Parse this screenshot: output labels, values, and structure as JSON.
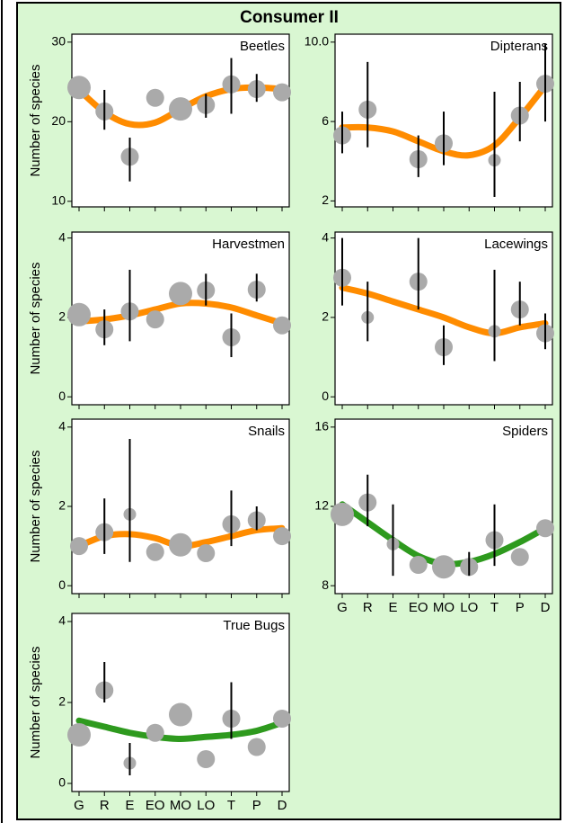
{
  "title": "Consumer II",
  "chart_data": [
    {
      "type": "scatter",
      "title": "Beetles",
      "ylabel": "Number of species",
      "values": [
        24.3,
        21.3,
        15.6,
        23,
        21.6,
        22.1,
        24.7,
        24.1,
        23.7
      ],
      "sizes": [
        3,
        2,
        2,
        2,
        3,
        2,
        2,
        2,
        2
      ],
      "lower": [
        null,
        19,
        12.5,
        null,
        null,
        20.5,
        21,
        22.5,
        null
      ],
      "upper": [
        null,
        24,
        18,
        null,
        null,
        23.5,
        28,
        26,
        null
      ],
      "fit": {
        "color": "#ff8c00",
        "values": [
          24,
          21.2,
          19.7,
          19.9,
          21.6,
          23.2,
          24.1,
          24.3,
          24.1
        ]
      },
      "ylim": [
        9.3,
        31
      ],
      "yticks": [
        10,
        20,
        30
      ]
    },
    {
      "type": "scatter",
      "title": "Dipterans",
      "values": [
        5.3,
        6.6,
        null,
        4.1,
        4.9,
        null,
        4.05,
        6.3,
        7.9
      ],
      "sizes": [
        2,
        2,
        null,
        2,
        2,
        null,
        1,
        2,
        2
      ],
      "lower": [
        4.4,
        4.7,
        null,
        3.2,
        3.8,
        null,
        2.2,
        5,
        6
      ],
      "upper": [
        6.5,
        9,
        null,
        5.3,
        6.5,
        null,
        7.5,
        8,
        9.9
      ],
      "fit": {
        "color": "#ff8c00",
        "values": [
          5.7,
          5.7,
          5.5,
          5.0,
          4.5,
          4.3,
          4.8,
          6.2,
          7.8
        ]
      },
      "ylim": [
        1.7,
        10.4
      ],
      "yticks": [
        2,
        6,
        {
          "value": 10,
          "label": "10.0"
        }
      ]
    },
    {
      "type": "scatter",
      "title": "Harvestmen",
      "ylabel": "Number of species",
      "values": [
        2.07,
        1.7,
        2.15,
        1.95,
        2.6,
        2.68,
        1.5,
        2.7,
        1.8
      ],
      "sizes": [
        3,
        2,
        2,
        2,
        3,
        2,
        2,
        2,
        2
      ],
      "lower": [
        null,
        1.3,
        1.4,
        null,
        null,
        2.3,
        1.0,
        2.4,
        null
      ],
      "upper": [
        null,
        2.2,
        3.2,
        null,
        null,
        3.1,
        2.1,
        3.1,
        null
      ],
      "fit": {
        "color": "#ff8c00",
        "values": [
          1.9,
          1.95,
          2.05,
          2.2,
          2.35,
          2.35,
          2.25,
          2.05,
          1.85
        ]
      },
      "ylim": [
        -0.2,
        4.15
      ],
      "yticks": [
        0,
        2,
        4
      ]
    },
    {
      "type": "scatter",
      "title": "Lacewings",
      "values": [
        3.0,
        2.0,
        null,
        2.9,
        1.25,
        null,
        1.65,
        2.2,
        1.6
      ],
      "sizes": [
        2,
        1,
        null,
        2,
        2,
        null,
        1,
        2,
        2
      ],
      "lower": [
        2.3,
        1.4,
        null,
        2.2,
        0.8,
        null,
        0.9,
        1.8,
        1.2
      ],
      "upper": [
        4.0,
        2.9,
        null,
        4.0,
        1.8,
        null,
        3.2,
        2.9,
        2.1
      ],
      "fit": {
        "color": "#ff8c00",
        "values": [
          2.75,
          2.6,
          2.4,
          2.2,
          2.0,
          1.75,
          1.6,
          1.75,
          1.85
        ]
      },
      "ylim": [
        -0.2,
        4.15
      ],
      "yticks": [
        0,
        2,
        4
      ]
    },
    {
      "type": "scatter",
      "title": "Snails",
      "ylabel": "Number of species",
      "values": [
        1.0,
        1.35,
        1.8,
        0.85,
        1.03,
        0.82,
        1.55,
        1.65,
        1.25
      ],
      "sizes": [
        2,
        2,
        1,
        2,
        3,
        2,
        2,
        2,
        2
      ],
      "lower": [
        null,
        0.8,
        0.6,
        null,
        null,
        null,
        1.0,
        1.4,
        null
      ],
      "upper": [
        null,
        2.2,
        3.7,
        null,
        null,
        null,
        2.4,
        2.0,
        null
      ],
      "fit": {
        "color": "#ff8c00",
        "values": [
          1.0,
          1.25,
          1.3,
          1.2,
          1.0,
          1.1,
          1.25,
          1.4,
          1.45
        ]
      },
      "ylim": [
        -0.2,
        4.2
      ],
      "yticks": [
        0,
        2,
        4
      ]
    },
    {
      "type": "scatter",
      "title": "Spiders",
      "categories": [
        "G",
        "R",
        "E",
        "EO",
        "MO",
        "LO",
        "T",
        "P",
        "D"
      ],
      "values": [
        11.6,
        12.2,
        10.1,
        9.05,
        8.95,
        8.95,
        10.3,
        9.45,
        10.9
      ],
      "sizes": [
        3,
        2,
        1,
        2,
        3,
        2,
        2,
        2,
        2
      ],
      "lower": [
        null,
        11,
        8.5,
        null,
        null,
        8.5,
        9,
        null,
        null
      ],
      "upper": [
        null,
        13.6,
        12.1,
        null,
        null,
        9.7,
        12.1,
        null,
        null
      ],
      "fit": {
        "color": "#2e9a1e",
        "values": [
          12.1,
          11.2,
          10.3,
          9.5,
          9.1,
          9.2,
          9.6,
          10.2,
          10.9
        ]
      },
      "ylim": [
        7.6,
        16.4
      ],
      "yticks": [
        8,
        12,
        16
      ]
    },
    {
      "type": "scatter",
      "title": "True Bugs",
      "ylabel": "Number of species",
      "categories": [
        "G",
        "R",
        "E",
        "EO",
        "MO",
        "LO",
        "T",
        "P",
        "D"
      ],
      "values": [
        1.2,
        2.3,
        0.5,
        1.25,
        1.7,
        0.6,
        1.6,
        0.9,
        1.6
      ],
      "sizes": [
        3,
        2,
        1,
        2,
        3,
        2,
        2,
        2,
        2
      ],
      "lower": [
        null,
        2.0,
        0.2,
        null,
        null,
        null,
        1.1,
        null,
        null
      ],
      "upper": [
        null,
        3.0,
        1.0,
        null,
        null,
        null,
        2.5,
        null,
        null
      ],
      "fit": {
        "color": "#2e9a1e",
        "values": [
          1.55,
          1.4,
          1.25,
          1.15,
          1.1,
          1.15,
          1.2,
          1.3,
          1.5
        ]
      },
      "ylim": [
        -0.2,
        4.2
      ],
      "yticks": [
        0,
        2,
        4
      ]
    }
  ]
}
